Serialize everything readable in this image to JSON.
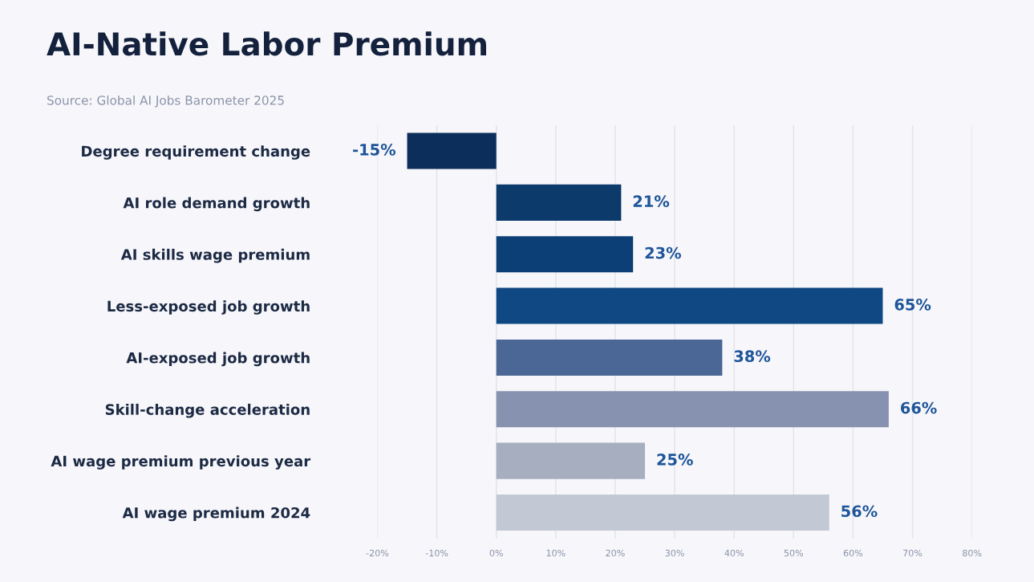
{
  "chart_data": {
    "type": "bar",
    "orientation": "horizontal",
    "title": "AI-Native Labor Premium",
    "annotations": [
      "Source: Global AI Jobs Barometer 2025"
    ],
    "categories": [
      "Degree requirement change",
      "AI role demand growth",
      "AI skills wage premium",
      "Less-exposed job growth",
      "AI-exposed job growth",
      "Skill-change acceleration",
      "AI wage premium previous year",
      "AI wage premium 2024"
    ],
    "values": [
      -15,
      21,
      23,
      65,
      38,
      66,
      25,
      56
    ],
    "value_labels": [
      "-15%",
      "21%",
      "23%",
      "65%",
      "38%",
      "66%",
      "25%",
      "56%"
    ],
    "colors": [
      "#0b2e5a",
      "#0b3a6b",
      "#0c3f75",
      "#0f4882",
      "#4b6795",
      "#8792b0",
      "#a6aec0",
      "#c3c9d4"
    ],
    "xlim": [
      -20,
      80
    ],
    "xticks": [
      {
        "value": -20,
        "label": "-20%"
      },
      {
        "value": -10,
        "label": "-10%"
      },
      {
        "value": 0,
        "label": "0%"
      },
      {
        "value": 10,
        "label": "10%"
      },
      {
        "value": 20,
        "label": "20%"
      },
      {
        "value": 30,
        "label": "30%"
      },
      {
        "value": 40,
        "label": "40%"
      },
      {
        "value": 50,
        "label": "50%"
      },
      {
        "value": 60,
        "label": "60%"
      },
      {
        "value": 70,
        "label": "70%"
      },
      {
        "value": 80,
        "label": "80%"
      }
    ],
    "grid": "x"
  }
}
